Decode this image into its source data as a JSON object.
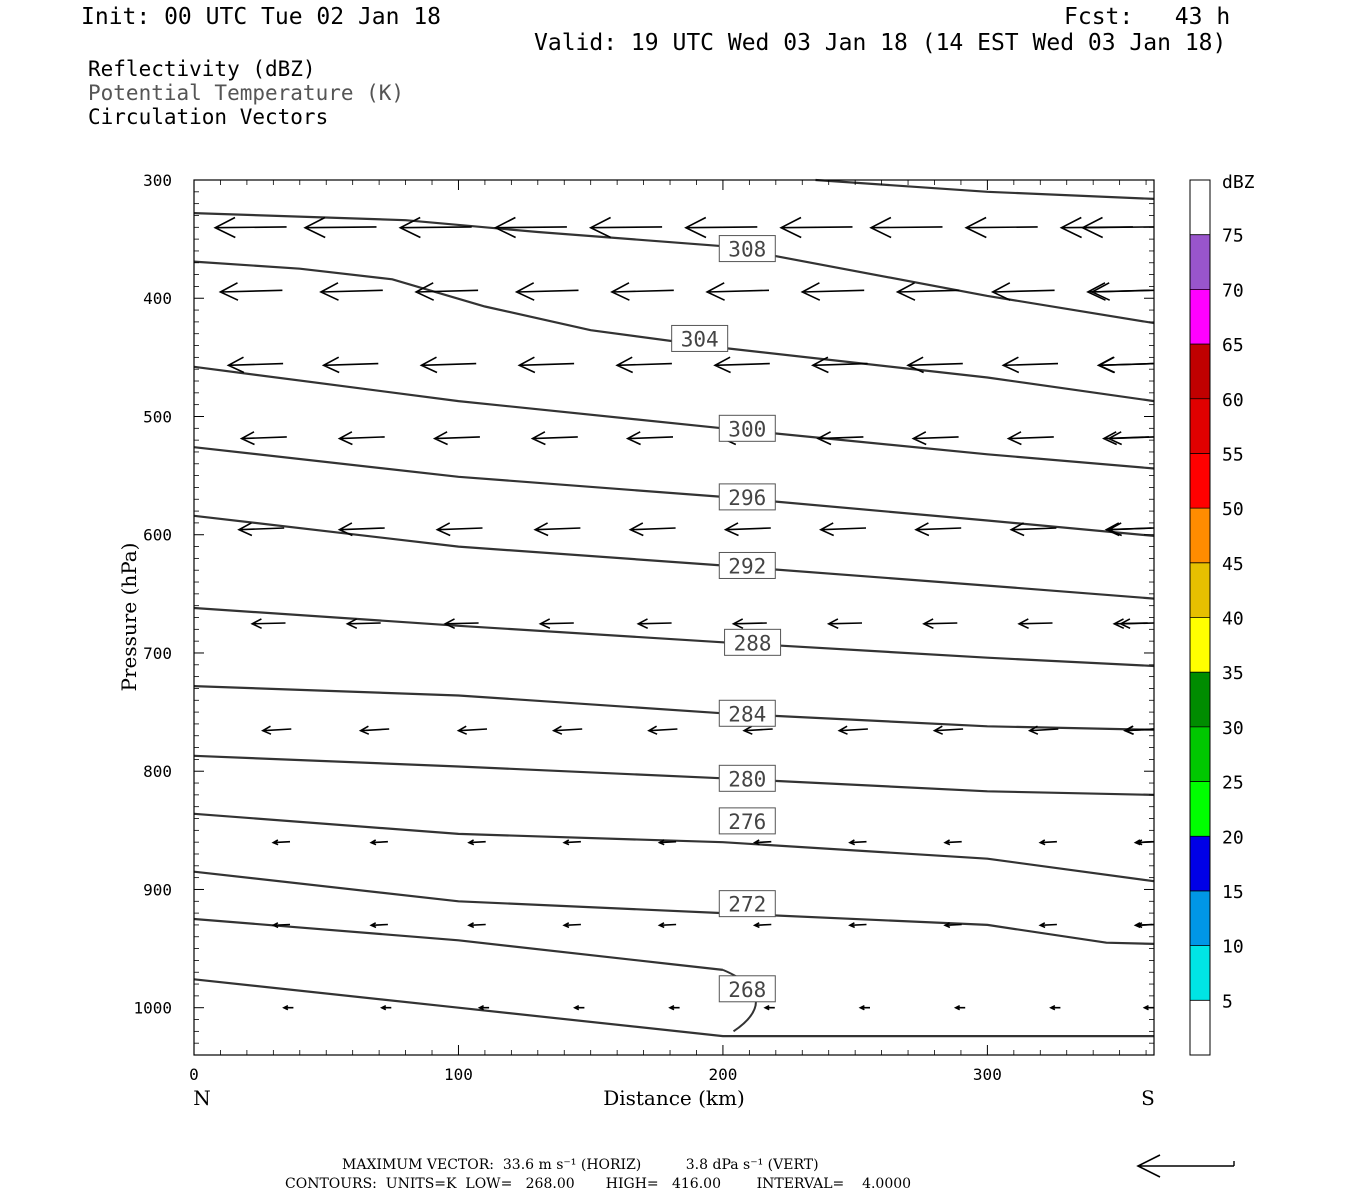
{
  "header": {
    "init": "Init: 00 UTC Tue 02 Jan 18",
    "fcst": "Fcst:   43 h",
    "valid": "Valid: 19 UTC Wed 03 Jan 18 (14 EST Wed 03 Jan 18)"
  },
  "legend": {
    "line1": "Reflectivity (dBZ)",
    "line2": "Potential Temperature (K)",
    "line3": "Circulation Vectors"
  },
  "footer": {
    "max_vector": "MAXIMUM VECTOR:  33.6 m s⁻¹ (HORIZ)          3.8 dPa s⁻¹ (VERT)",
    "contours": "CONTOURS:  UNITS=K  LOW=   268.00       HIGH=   416.00        INTERVAL=    4.0000"
  },
  "colors": {
    "contour": "#333333",
    "vector": "#000000",
    "colorbar": [
      "#ffffff",
      "#00e5e5",
      "#0096e6",
      "#0000e6",
      "#00ff00",
      "#00c800",
      "#008c00",
      "#ffff00",
      "#e6c000",
      "#ff8c00",
      "#ff0000",
      "#e00000",
      "#c00000",
      "#ff00ff",
      "#9955cc",
      "#ffffff"
    ]
  },
  "chart_data": {
    "type": "cross-section",
    "xlabel": "Distance (km)",
    "ylabel": "Pressure (hPa)",
    "xlim": [
      0,
      363
    ],
    "ylim": [
      1040,
      300
    ],
    "x_ticks": [
      0,
      100,
      200,
      300
    ],
    "y_ticks": [
      300,
      400,
      500,
      600,
      700,
      800,
      900,
      1000
    ],
    "end_labels": {
      "left": "N",
      "right": "S"
    },
    "colorbar": {
      "title": "dBZ",
      "labels": [
        "5",
        "10",
        "15",
        "20",
        "25",
        "30",
        "35",
        "40",
        "45",
        "50",
        "55",
        "60",
        "65",
        "70",
        "75"
      ]
    },
    "contours": [
      {
        "label": "268",
        "label_at": [
          199,
          984
        ],
        "points": [
          [
            0,
            976
          ],
          [
            100,
            1000
          ],
          [
            200,
            1024
          ],
          [
            363,
            1024
          ]
        ]
      },
      {
        "label": "268",
        "label_at": null,
        "points": [
          [
            0,
            925
          ],
          [
            100,
            943
          ],
          [
            180,
            963
          ],
          [
            200,
            968
          ]
        ]
      },
      {
        "label": "272",
        "label_at": [
          199,
          912
        ],
        "points": [
          [
            0,
            885
          ],
          [
            100,
            910
          ],
          [
            200,
            920
          ],
          [
            300,
            930
          ],
          [
            345,
            945
          ],
          [
            363,
            946
          ]
        ]
      },
      {
        "label": "276",
        "label_at": [
          199,
          842
        ],
        "points": [
          [
            0,
            836
          ],
          [
            100,
            853
          ],
          [
            200,
            860
          ],
          [
            300,
            874
          ],
          [
            363,
            893
          ]
        ]
      },
      {
        "label": "280",
        "label_at": [
          199,
          806
        ],
        "points": [
          [
            0,
            787
          ],
          [
            100,
            796
          ],
          [
            200,
            806
          ],
          [
            300,
            817
          ],
          [
            363,
            820
          ]
        ]
      },
      {
        "label": "284",
        "label_at": [
          199,
          751
        ],
        "points": [
          [
            0,
            728
          ],
          [
            100,
            736
          ],
          [
            200,
            751
          ],
          [
            300,
            762
          ],
          [
            363,
            765
          ]
        ]
      },
      {
        "label": "288",
        "label_at": [
          201,
          691
        ],
        "points": [
          [
            0,
            662
          ],
          [
            100,
            677
          ],
          [
            200,
            691
          ],
          [
            300,
            704
          ],
          [
            363,
            711
          ]
        ]
      },
      {
        "label": "292",
        "label_at": [
          199,
          626
        ],
        "points": [
          [
            0,
            584
          ],
          [
            100,
            610
          ],
          [
            200,
            626
          ],
          [
            300,
            643
          ],
          [
            363,
            654
          ]
        ]
      },
      {
        "label": "296",
        "label_at": [
          199,
          568
        ],
        "points": [
          [
            0,
            526
          ],
          [
            100,
            551
          ],
          [
            200,
            568
          ],
          [
            300,
            588
          ],
          [
            363,
            601
          ]
        ]
      },
      {
        "label": "300",
        "label_at": [
          199,
          510
        ],
        "points": [
          [
            0,
            458
          ],
          [
            100,
            487
          ],
          [
            200,
            510
          ],
          [
            300,
            532
          ],
          [
            363,
            544
          ]
        ]
      },
      {
        "label": "304",
        "label_at": [
          181,
          434
        ],
        "points": [
          [
            0,
            369
          ],
          [
            40,
            375
          ],
          [
            75,
            384
          ],
          [
            110,
            407
          ],
          [
            150,
            427
          ],
          [
            200,
            442
          ],
          [
            300,
            467
          ],
          [
            363,
            487
          ]
        ]
      },
      {
        "label": "308",
        "label_at": [
          199,
          358
        ],
        "points": [
          [
            0,
            328
          ],
          [
            80,
            334
          ],
          [
            130,
            344
          ],
          [
            200,
            356
          ],
          [
            300,
            398
          ],
          [
            363,
            421
          ]
        ]
      },
      {
        "label": "",
        "label_at": null,
        "points": [
          [
            235,
            300
          ],
          [
            300,
            310
          ],
          [
            363,
            316
          ]
        ]
      }
    ],
    "vectors": [
      {
        "p": 340,
        "u": -30,
        "w": -1,
        "x": [
          8,
          42,
          78,
          114,
          150,
          186,
          222,
          256,
          292,
          328,
          363
        ]
      },
      {
        "p": 394,
        "u": -26,
        "w": -2,
        "x": [
          10,
          48,
          84,
          122,
          158,
          194,
          230,
          266,
          302,
          338,
          363
        ]
      },
      {
        "p": 456,
        "u": -23,
        "w": -2,
        "x": [
          13,
          49,
          86,
          123,
          160,
          197,
          234,
          270,
          306,
          342,
          363
        ]
      },
      {
        "p": 518,
        "u": -19,
        "w": -2,
        "x": [
          18,
          55,
          91,
          128,
          164,
          200,
          236,
          272,
          308,
          344,
          363
        ]
      },
      {
        "p": 595,
        "u": -19,
        "w": -2,
        "x": [
          17,
          55,
          92,
          129,
          165,
          201,
          237,
          273,
          309,
          345,
          363
        ]
      },
      {
        "p": 675,
        "u": -14,
        "w": -1,
        "x": [
          22,
          58,
          95,
          131,
          168,
          204,
          240,
          276,
          312,
          348,
          363
        ]
      },
      {
        "p": 765,
        "u": -12,
        "w": -2,
        "x": [
          26,
          63,
          100,
          136,
          172,
          208,
          244,
          280,
          316,
          352,
          363
        ]
      },
      {
        "p": 860,
        "u": -7,
        "w": -1,
        "x": [
          30,
          67,
          104,
          140,
          176,
          212,
          248,
          284,
          320,
          356,
          363
        ]
      },
      {
        "p": 930,
        "u": -7,
        "w": -1,
        "x": [
          30,
          67,
          104,
          140,
          176,
          212,
          248,
          284,
          320,
          356,
          363
        ]
      },
      {
        "p": 1000,
        "u": -4,
        "w": 0,
        "x": [
          34,
          71,
          108,
          144,
          180,
          216,
          252,
          288,
          324,
          360
        ]
      }
    ],
    "reference_vector": {
      "u": 33.6,
      "w": 3.8
    }
  }
}
